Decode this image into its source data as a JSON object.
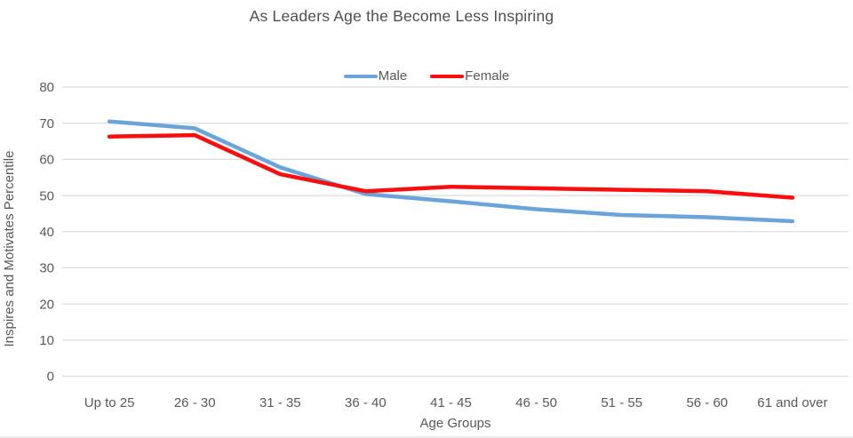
{
  "chart_data": {
    "type": "line",
    "title": "As Leaders Age the Become Less Inspiring",
    "xlabel": "Age Groups",
    "ylabel": "Inspires and Motivates Percentile",
    "categories": [
      "Up to 25",
      "26 - 30",
      "31 - 35",
      "36 - 40",
      "41 - 45",
      "46 - 50",
      "51 - 55",
      "56 - 60",
      "61 and over"
    ],
    "series": [
      {
        "name": "Male",
        "color": "#6BA4D8",
        "values": [
          70.5,
          68.6,
          57.8,
          50.4,
          48.4,
          46.2,
          44.6,
          44.0,
          42.9
        ]
      },
      {
        "name": "Female",
        "color": "#F90D0D",
        "values": [
          66.3,
          66.7,
          55.9,
          51.2,
          52.4,
          52.0,
          51.6,
          51.2,
          49.4
        ]
      }
    ],
    "ylim": [
      0,
      80
    ],
    "ytick_step": 10,
    "yticks": [
      0,
      10,
      20,
      30,
      40,
      50,
      60,
      70,
      80
    ],
    "grid": true,
    "legend_position": "top-center",
    "gridline_color": "#DCDCDC",
    "text_color": "#595959"
  }
}
